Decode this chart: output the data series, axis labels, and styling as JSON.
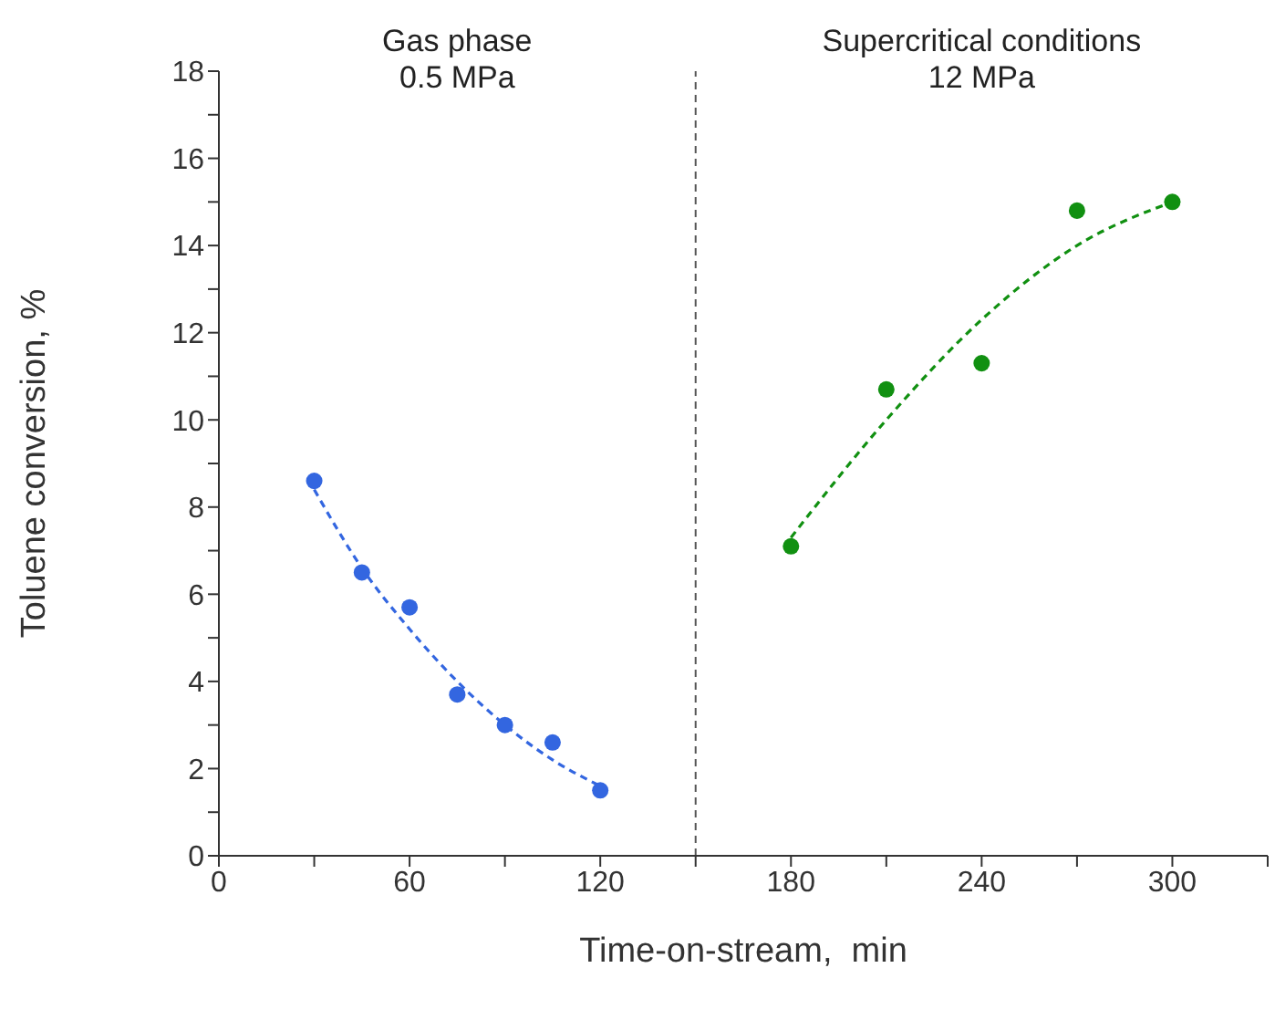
{
  "chart_data": {
    "type": "scatter",
    "xlabel": "Time-on-stream,  min",
    "ylabel": "Toluene conversion, %",
    "series": [
      {
        "color": "#3366e0",
        "x": [
          30,
          45,
          60,
          75,
          90,
          105,
          120
        ],
        "values": [
          8.6,
          6.5,
          5.7,
          3.7,
          3.0,
          2.6,
          1.5
        ]
      },
      {
        "color": "#119011",
        "x": [
          180,
          210,
          240,
          270,
          300
        ],
        "values": [
          7.1,
          10.7,
          11.3,
          14.8,
          15.0
        ]
      },
      {
        "type": "line",
        "color": "#3366e0",
        "line_style": "dashed",
        "marker": "none",
        "x": [
          30,
          45,
          60,
          75,
          90,
          105,
          120
        ],
        "values": [
          8.4,
          6.6,
          5.2,
          4.0,
          3.0,
          2.2,
          1.6
        ]
      },
      {
        "type": "line",
        "color": "#119011",
        "line_style": "dashed",
        "marker": "none",
        "x": [
          180,
          210,
          240,
          270,
          300
        ],
        "values": [
          7.3,
          10.0,
          12.3,
          14.0,
          15.0
        ]
      }
    ],
    "marker": "circle",
    "grid": false,
    "legend": false,
    "xlim": [
      0,
      330
    ],
    "xticks": [
      0,
      {
        "value": 30,
        "label": null
      },
      60,
      {
        "value": 90,
        "label": null
      },
      120,
      {
        "value": 150,
        "label": null
      },
      180,
      {
        "value": 210,
        "label": null
      },
      240,
      {
        "value": 270,
        "label": null
      },
      300,
      {
        "value": 330,
        "label": null
      }
    ],
    "ylim": [
      0,
      18
    ],
    "yticks": [
      0,
      {
        "value": 1,
        "label": null
      },
      2,
      {
        "value": 3,
        "label": null
      },
      4,
      {
        "value": 5,
        "label": null
      },
      6,
      {
        "value": 7,
        "label": null
      },
      8,
      {
        "value": 9,
        "label": null
      },
      10,
      {
        "value": 11,
        "label": null
      },
      12,
      {
        "value": 13,
        "label": null
      },
      14,
      {
        "value": 15,
        "label": null
      },
      16,
      {
        "value": 17,
        "label": null
      },
      18
    ],
    "ref_lines": [
      {
        "axis": "x",
        "value": 150,
        "color": "#555555",
        "line_style": "dashed"
      }
    ],
    "annotations": [
      "Gas phase\n0.5 MPa",
      "Supercritical conditions\n12 MPa"
    ]
  }
}
